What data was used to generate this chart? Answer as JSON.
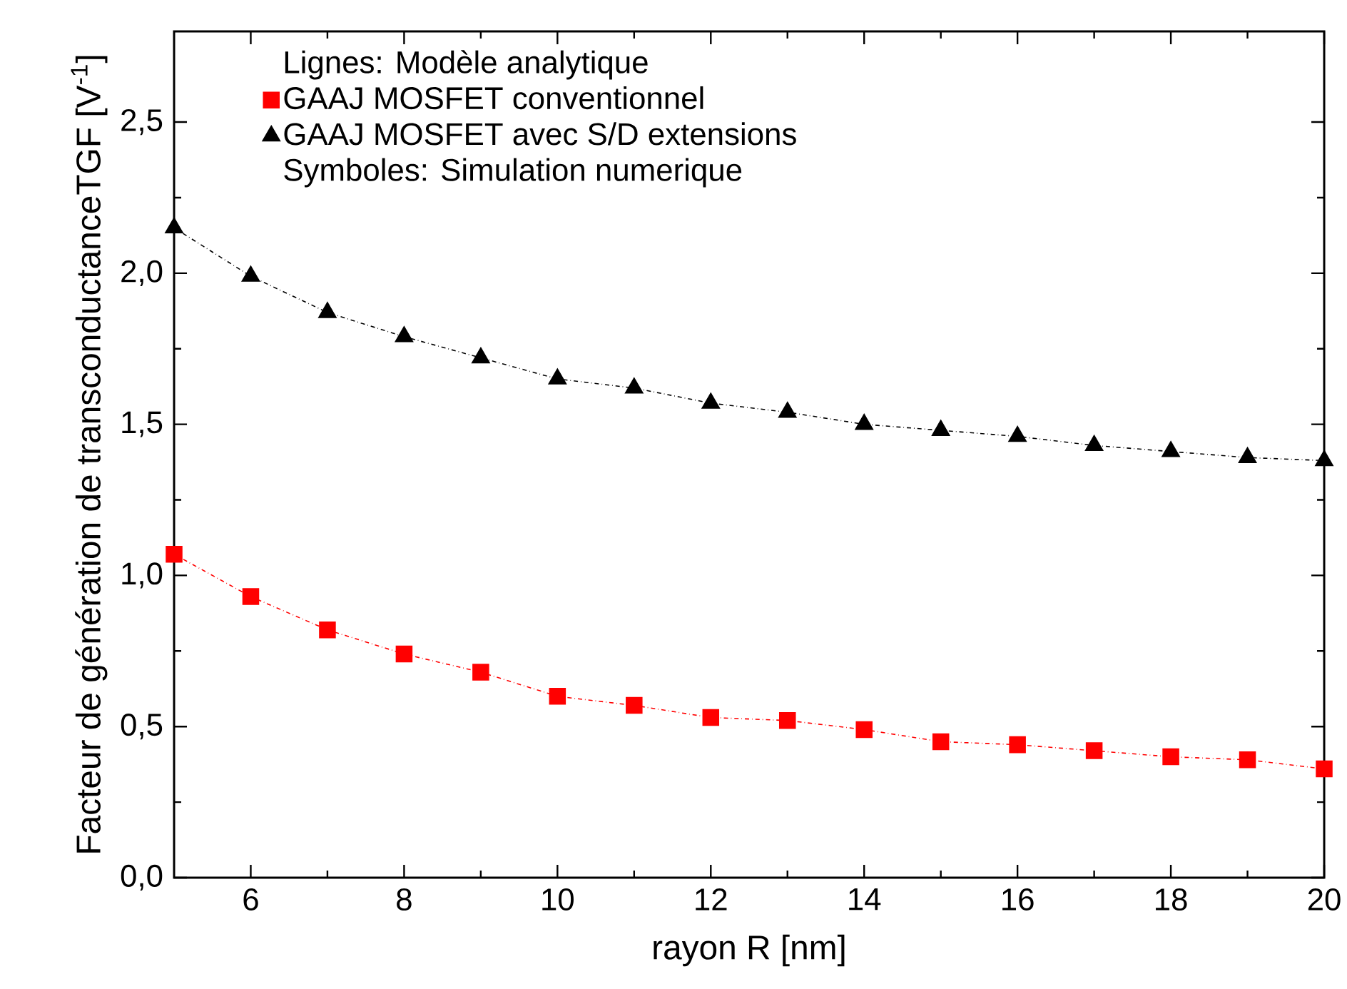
{
  "chart_data": {
    "type": "line",
    "xlabel": "rayon R [nm]",
    "ylabel": "Facteur de génération de transconductanceTGF [V$^{-1}$]",
    "legend_title": "Lignes:  Modèle analytique",
    "annotations": [
      "Symboles: Simulation numerique"
    ],
    "x": [
      5,
      6,
      7,
      8,
      9,
      10,
      11,
      12,
      13,
      14,
      15,
      16,
      17,
      18,
      19,
      20
    ],
    "series": [
      {
        "name": "GAAJ MOSFET  conventionnel",
        "color": "#ff0000",
        "marker": "square",
        "line_style": "dashed",
        "values": [
          1.07,
          0.93,
          0.82,
          0.74,
          0.68,
          0.6,
          0.57,
          0.53,
          0.52,
          0.49,
          0.45,
          0.44,
          0.42,
          0.4,
          0.39,
          0.36
        ]
      },
      {
        "name": "GAAJ MOSFET avec S/D extensions",
        "color": "#000000",
        "marker": "triangle",
        "line_style": "dashed",
        "values": [
          2.15,
          1.99,
          1.87,
          1.79,
          1.72,
          1.65,
          1.62,
          1.57,
          1.54,
          1.5,
          1.48,
          1.46,
          1.43,
          1.41,
          1.39,
          1.38
        ]
      }
    ],
    "xlim": [
      5,
      20
    ],
    "xticks": [
      6,
      8,
      10,
      12,
      14,
      16,
      18,
      20
    ],
    "ylim": [
      0,
      2.8
    ],
    "yticks": [
      {
        "value": 0,
        "label": "0,0"
      },
      {
        "value": 0.5,
        "label": "0,5"
      },
      {
        "value": 1,
        "label": "1,0"
      },
      {
        "value": 1.5,
        "label": "1,5"
      },
      {
        "value": 2,
        "label": "2,0"
      },
      {
        "value": 2.5,
        "label": "2,5"
      }
    ],
    "grid": false,
    "legend": "top left"
  }
}
